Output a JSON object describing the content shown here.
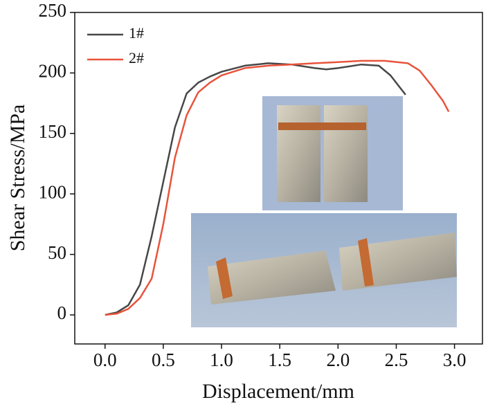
{
  "chart_data": {
    "type": "line",
    "xlabel": "Displacement/mm",
    "ylabel": "Shear Stress/MPa",
    "series": [
      {
        "name": "1#",
        "color": "#474747",
        "x": [
          0,
          0.1,
          0.2,
          0.3,
          0.4,
          0.5,
          0.6,
          0.7,
          0.8,
          0.9,
          1.0,
          1.2,
          1.4,
          1.6,
          1.8,
          1.9,
          2.0,
          2.2,
          2.35,
          2.45,
          2.58
        ],
        "values": [
          0,
          2,
          8,
          25,
          65,
          110,
          155,
          183,
          192,
          197,
          201,
          206,
          208,
          207,
          204,
          203,
          204,
          207,
          206,
          198,
          182
        ]
      },
      {
        "name": "2#",
        "color": "#e8533a",
        "x": [
          0,
          0.1,
          0.2,
          0.3,
          0.4,
          0.5,
          0.6,
          0.7,
          0.8,
          0.9,
          1.0,
          1.2,
          1.4,
          1.6,
          1.8,
          2.0,
          2.2,
          2.4,
          2.6,
          2.7,
          2.8,
          2.9,
          2.95
        ],
        "values": [
          0,
          1,
          5,
          14,
          30,
          75,
          130,
          165,
          184,
          192,
          198,
          204,
          206,
          207,
          208,
          209,
          210,
          210,
          208,
          202,
          190,
          177,
          168
        ]
      }
    ],
    "xlim": [
      -0.26,
      3.24
    ],
    "ylim": [
      -24,
      250
    ],
    "xticks": [
      {
        "value": 0,
        "label": "0.0"
      },
      0.5,
      {
        "value": 1,
        "label": "1.0"
      },
      1.5,
      {
        "value": 2,
        "label": "2.0"
      },
      2.5,
      {
        "value": 3,
        "label": "3.0"
      }
    ],
    "yticks": [
      0,
      50,
      100,
      150,
      200,
      250
    ],
    "legend": "upper left"
  }
}
